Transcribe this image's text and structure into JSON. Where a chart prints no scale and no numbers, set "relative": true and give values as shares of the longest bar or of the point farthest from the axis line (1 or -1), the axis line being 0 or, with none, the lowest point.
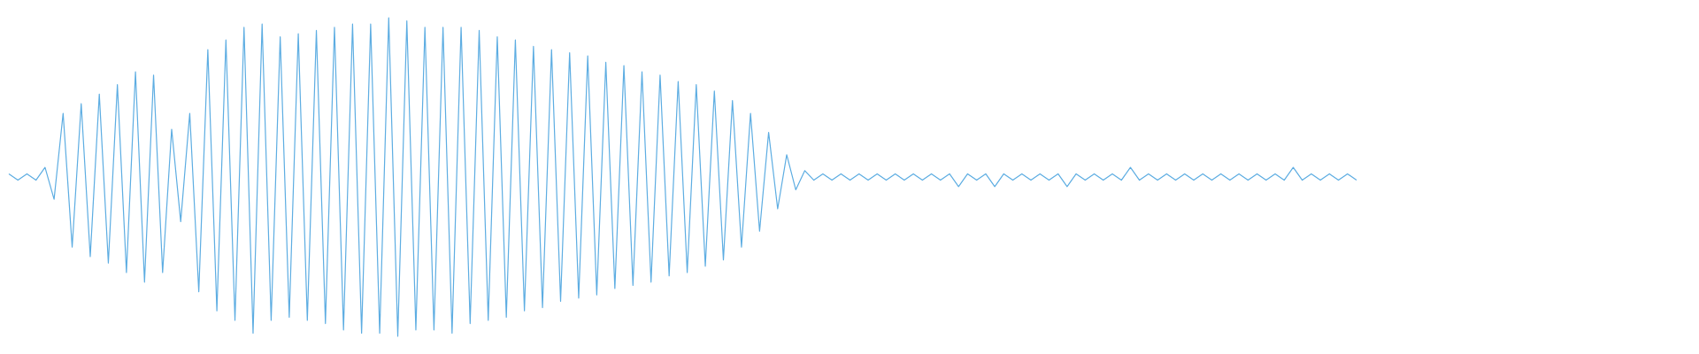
{
  "chart_data": {
    "type": "line",
    "relative": true,
    "color": "#5dade2",
    "categories": [
      null,
      null,
      null,
      null,
      null,
      null,
      null,
      null,
      null,
      null,
      null,
      null,
      null,
      null,
      null,
      null,
      null,
      null,
      null,
      null,
      null,
      null,
      null,
      null,
      null,
      null,
      null,
      null,
      null,
      null,
      null,
      null,
      null,
      null,
      null,
      null,
      null,
      null,
      null,
      null,
      null,
      null,
      null,
      null,
      null,
      null,
      null,
      null,
      null,
      null,
      null,
      null,
      null,
      null,
      null,
      null,
      null,
      null,
      null,
      null,
      null,
      null,
      null,
      null,
      null,
      null,
      null,
      null,
      null,
      null,
      null,
      null,
      null,
      null,
      null,
      null,
      null,
      null,
      null,
      null,
      null,
      null,
      null,
      null,
      null,
      null,
      null,
      null,
      null,
      null,
      null,
      null,
      null,
      null,
      null,
      null,
      null,
      null,
      null,
      null,
      null,
      null,
      null,
      null,
      null,
      null,
      null,
      null,
      null,
      null,
      null,
      null,
      null,
      null,
      null,
      null,
      null,
      null,
      null,
      null,
      null,
      null,
      null,
      null,
      null,
      null,
      null,
      null,
      null,
      null,
      null,
      null,
      null,
      null,
      null,
      null,
      null,
      null,
      null,
      null,
      null,
      null,
      null,
      null,
      null,
      null,
      null,
      null,
      null,
      null
    ],
    "values": [
      0.51,
      0.49,
      0.51,
      0.49,
      0.53,
      0.43,
      0.7,
      0.28,
      0.73,
      0.25,
      0.76,
      0.23,
      0.79,
      0.2,
      0.83,
      0.17,
      0.82,
      0.2,
      0.65,
      0.36,
      0.7,
      0.14,
      0.9,
      0.08,
      0.93,
      0.05,
      0.97,
      0.01,
      0.98,
      0.05,
      0.94,
      0.06,
      0.95,
      0.05,
      0.96,
      0.04,
      0.97,
      0.02,
      0.98,
      0.01,
      0.98,
      0.01,
      1.0,
      0.0,
      0.99,
      0.02,
      0.97,
      0.02,
      0.97,
      0.01,
      0.97,
      0.04,
      0.96,
      0.05,
      0.94,
      0.06,
      0.93,
      0.08,
      0.91,
      0.09,
      0.9,
      0.11,
      0.89,
      0.12,
      0.88,
      0.13,
      0.86,
      0.15,
      0.85,
      0.16,
      0.83,
      0.17,
      0.82,
      0.19,
      0.8,
      0.2,
      0.79,
      0.22,
      0.77,
      0.24,
      0.74,
      0.28,
      0.7,
      0.33,
      0.64,
      0.4,
      0.57,
      0.46,
      0.52,
      0.49,
      0.51,
      0.49,
      0.51,
      0.49,
      0.51,
      0.49,
      0.51,
      0.49,
      0.51,
      0.49,
      0.51,
      0.49,
      0.51,
      0.49,
      0.51,
      0.47,
      0.51,
      0.49,
      0.51,
      0.47,
      0.51,
      0.49,
      0.51,
      0.49,
      0.51,
      0.49,
      0.51,
      0.47,
      0.51,
      0.49,
      0.51,
      0.49,
      0.51,
      0.49,
      0.53,
      0.49,
      0.51,
      0.49,
      0.51,
      0.49,
      0.51,
      0.49,
      0.51,
      0.49,
      0.51,
      0.49,
      0.51,
      0.49,
      0.51,
      0.49,
      0.51,
      0.49,
      0.53,
      0.49,
      0.51,
      0.49,
      0.51,
      0.49,
      0.51,
      0.49
    ]
  }
}
